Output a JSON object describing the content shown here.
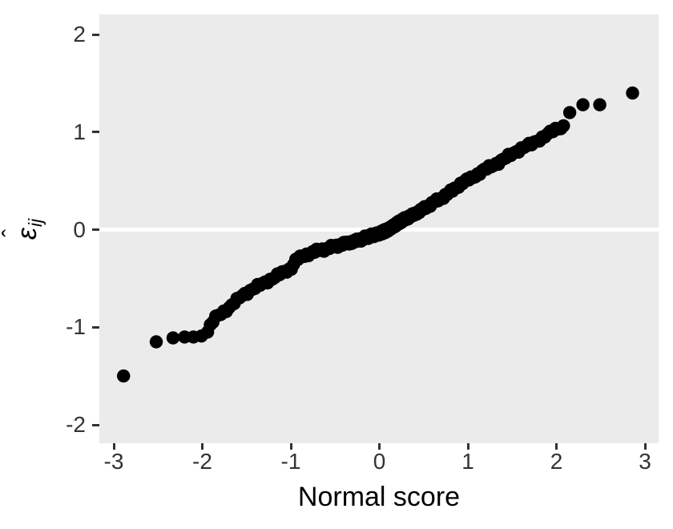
{
  "axes": {
    "x": {
      "title": "Normal score",
      "ticks": [
        -3,
        -2,
        -1,
        0,
        1,
        2,
        3
      ]
    },
    "y": {
      "title": {
        "hat": "ˆ",
        "base": "ε",
        "subscript": "ij"
      },
      "ticks": [
        -2,
        -1,
        0,
        1,
        2
      ]
    }
  },
  "chart_data": {
    "type": "scatter",
    "title": "",
    "xlabel": "Normal score",
    "ylabel": "ε̂ij",
    "xlim": [
      -3.16,
      3.15
    ],
    "ylim": [
      -2.2,
      2.2
    ],
    "grid": "none except white reference line at y=0",
    "legend_position": "none",
    "panel_background": "#EBEBEB",
    "point_color": "#000000",
    "point_radius_px": 8.2,
    "tick_color": "#333333",
    "zero_line": {
      "y": 0,
      "color": "#FFFFFF"
    },
    "n_points_estimated": 250,
    "isolated_points": [
      [
        -2.89,
        -1.5
      ],
      [
        -2.52,
        -1.15
      ],
      [
        -2.33,
        -1.11
      ],
      [
        -2.2,
        -1.1
      ],
      [
        -2.1,
        -1.1
      ],
      [
        -2.01,
        -1.09
      ],
      [
        2.15,
        1.2
      ],
      [
        2.3,
        1.28
      ],
      [
        2.49,
        1.28
      ],
      [
        2.86,
        1.4
      ]
    ],
    "dense_chain": {
      "description": "about 240 heavily overlapping points forming a thick monotone band; band center follows curve_knots",
      "count": 240,
      "x_start": -1.94,
      "x_end": 2.08,
      "density_center_bias": 0.8,
      "jitter_amplitude": 0.013,
      "curve_knots": [
        [
          -1.94,
          -1.05
        ],
        [
          -1.9,
          -0.97
        ],
        [
          -1.84,
          -0.89
        ],
        [
          -1.76,
          -0.84
        ],
        [
          -1.68,
          -0.79
        ],
        [
          -1.56,
          -0.68
        ],
        [
          -1.45,
          -0.62
        ],
        [
          -1.33,
          -0.56
        ],
        [
          -1.21,
          -0.5
        ],
        [
          -1.09,
          -0.44
        ],
        [
          -1.0,
          -0.4
        ],
        [
          -0.94,
          -0.31
        ],
        [
          -0.86,
          -0.27
        ],
        [
          -0.75,
          -0.23
        ],
        [
          -0.62,
          -0.2
        ],
        [
          -0.5,
          -0.17
        ],
        [
          -0.37,
          -0.14
        ],
        [
          -0.24,
          -0.11
        ],
        [
          -0.12,
          -0.07
        ],
        [
          0.0,
          -0.04
        ],
        [
          0.1,
          0.0
        ],
        [
          0.25,
          0.09
        ],
        [
          0.42,
          0.17
        ],
        [
          0.6,
          0.27
        ],
        [
          0.78,
          0.37
        ],
        [
          0.92,
          0.47
        ],
        [
          1.04,
          0.53
        ],
        [
          1.15,
          0.59
        ],
        [
          1.26,
          0.65
        ],
        [
          1.37,
          0.7
        ],
        [
          1.49,
          0.77
        ],
        [
          1.62,
          0.84
        ],
        [
          1.73,
          0.88
        ],
        [
          1.85,
          0.95
        ],
        [
          1.98,
          1.02
        ],
        [
          2.08,
          1.06
        ]
      ]
    }
  }
}
